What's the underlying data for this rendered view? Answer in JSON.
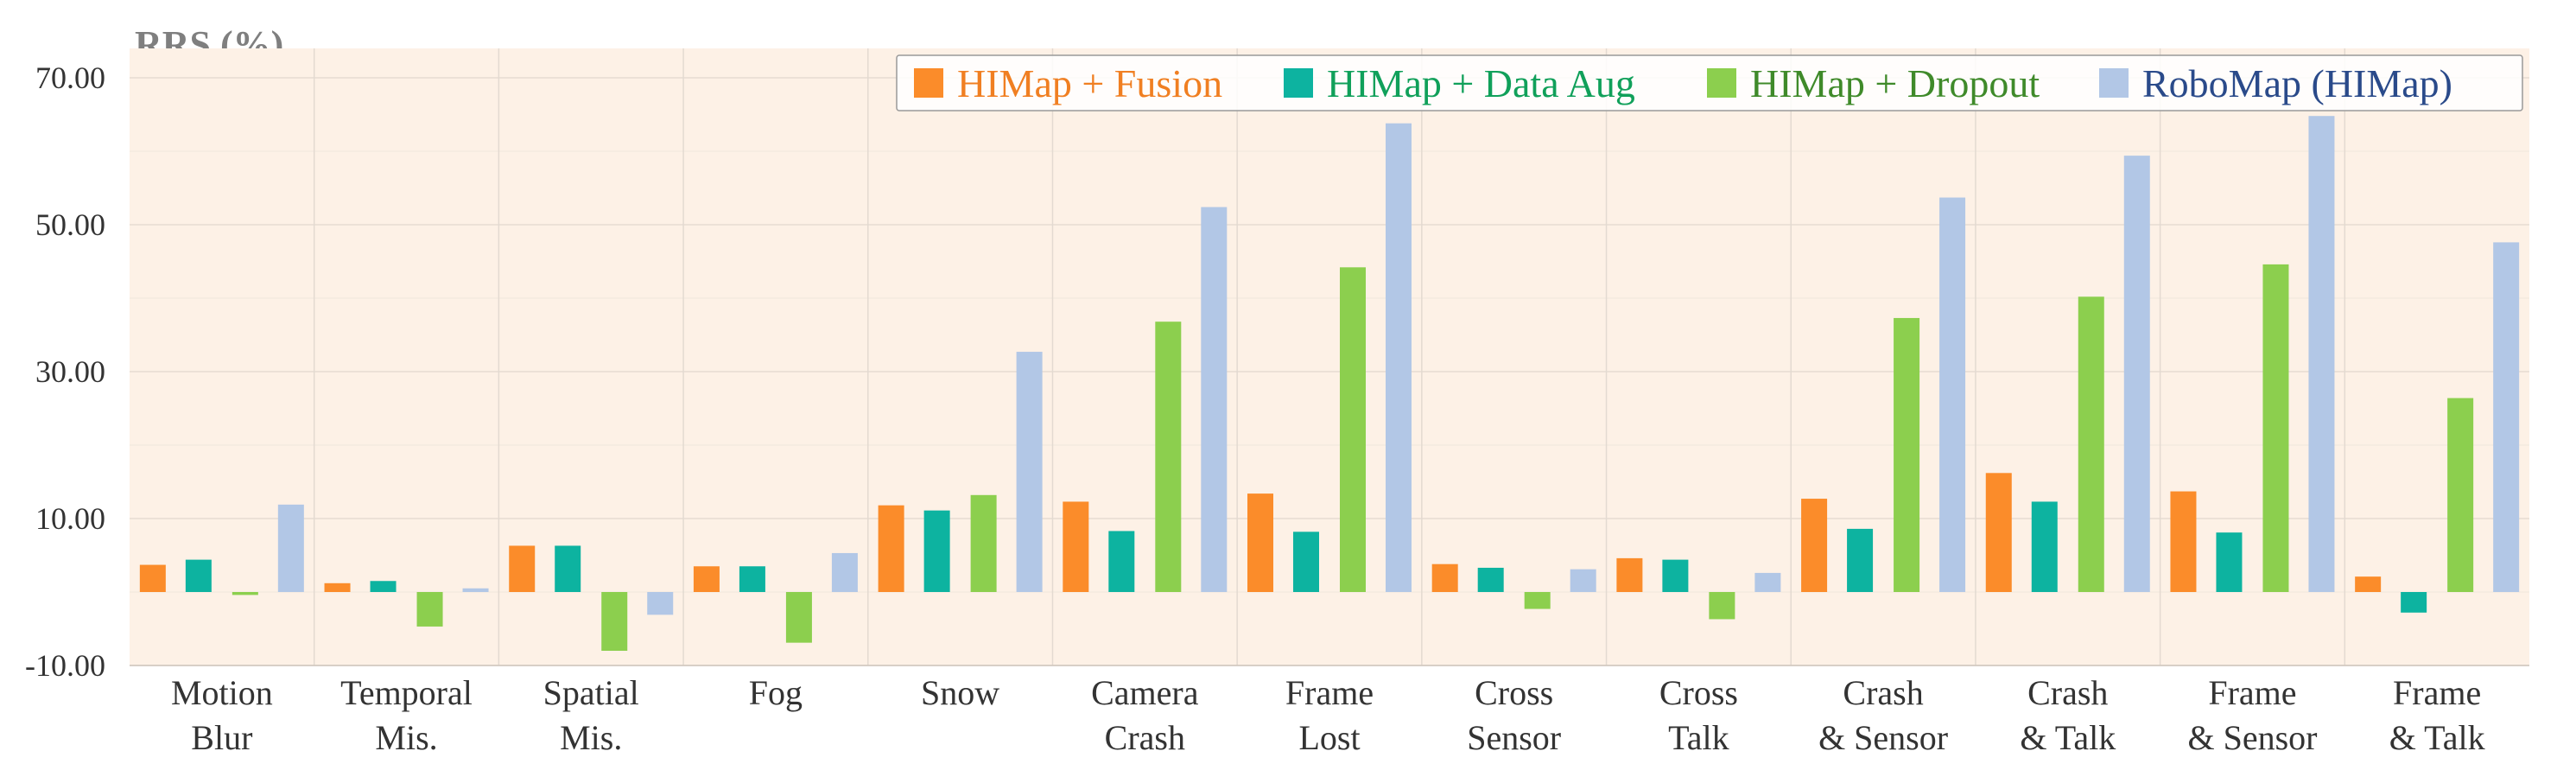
{
  "chart_data": {
    "type": "bar",
    "ylabel": "RRS (%)",
    "ylim": [
      -10,
      74
    ],
    "yticks": [
      "70.00",
      "50.00",
      "30.00",
      "10.00",
      "-10.00"
    ],
    "ytick_values": [
      70,
      50,
      30,
      10,
      -10
    ],
    "grid": true,
    "legend_position": "top-right",
    "categories": [
      [
        "Motion",
        "Blur"
      ],
      [
        "Temporal",
        "Mis."
      ],
      [
        "Spatial",
        "Mis."
      ],
      [
        "Fog"
      ],
      [
        "Snow"
      ],
      [
        "Camera",
        "Crash"
      ],
      [
        "Frame",
        "Lost"
      ],
      [
        "Cross",
        "Sensor"
      ],
      [
        "Cross",
        "Talk"
      ],
      [
        "Crash",
        "& Sensor"
      ],
      [
        "Crash",
        "& Talk"
      ],
      [
        "Frame",
        "& Sensor"
      ],
      [
        "Frame",
        "& Talk"
      ]
    ],
    "series": [
      {
        "name": "HIMap + Fusion",
        "color": "#fb8c2a",
        "text_color": "#f07f22",
        "values": [
          3.7,
          1.2,
          6.3,
          3.5,
          11.8,
          12.3,
          13.4,
          3.8,
          4.6,
          12.7,
          16.2,
          13.7,
          2.1
        ]
      },
      {
        "name": "HIMap + Data Aug",
        "color": "#0db3a0",
        "text_color": "#10a05a",
        "values": [
          4.4,
          1.5,
          6.3,
          3.5,
          11.1,
          8.3,
          8.2,
          3.3,
          4.4,
          8.6,
          12.3,
          8.1,
          -2.8
        ]
      },
      {
        "name": "HIMap + Dropout",
        "color": "#8ccf4e",
        "text_color": "#3f8a2a",
        "values": [
          -0.4,
          -4.7,
          -8.0,
          -6.9,
          13.2,
          36.8,
          44.2,
          -2.3,
          -3.7,
          37.3,
          40.2,
          44.6,
          26.4
        ]
      },
      {
        "name": "RoboMap (HIMap)",
        "color": "#b2c7e6",
        "text_color": "#2a4a8a",
        "values": [
          11.9,
          0.5,
          -3.1,
          5.3,
          32.7,
          52.4,
          63.8,
          3.1,
          2.6,
          53.7,
          59.4,
          64.8,
          47.6
        ]
      }
    ]
  }
}
